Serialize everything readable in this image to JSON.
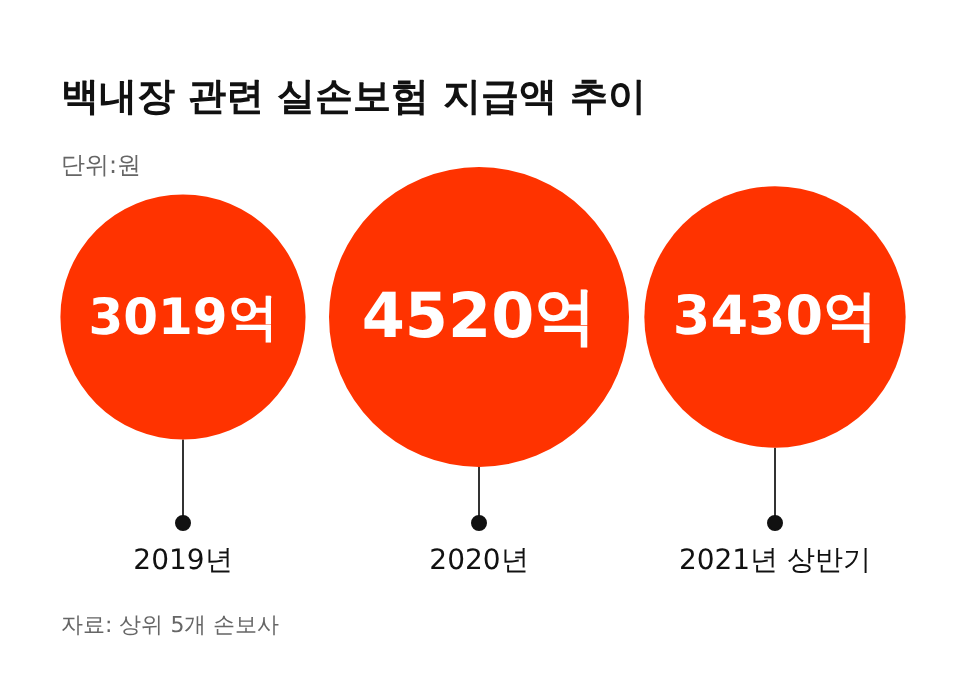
{
  "chart_data": {
    "type": "other",
    "title": "백내장 관련 실손보험 지급액 추이",
    "subtitle": "단위:원",
    "categories": [
      "2019년",
      "2020년",
      "2021년 상반기"
    ],
    "values": [
      3019,
      4520,
      3430
    ],
    "value_labels": [
      "3019억",
      "4520억",
      "3430억"
    ],
    "color": "#ff3300",
    "annotations": [
      "자료: 상위 5개 손보사"
    ]
  }
}
